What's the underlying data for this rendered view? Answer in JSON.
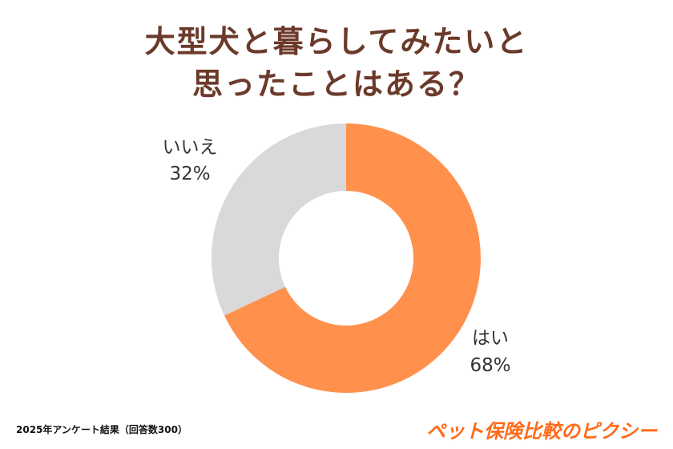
{
  "chart_data": {
    "type": "pie",
    "donut": true,
    "title_lines": [
      "大型犬と暮らしてみたいと",
      "思ったことはある？"
    ],
    "categories": [
      "はい",
      "いいえ"
    ],
    "values": [
      68,
      32
    ],
    "value_labels": [
      "68%",
      "32%"
    ],
    "colors": [
      "#FF914D",
      "#D9D9D9"
    ],
    "start_angle": "top",
    "direction": "clockwise",
    "legend": "none"
  },
  "footer": {
    "note": "2025年アンケート結果（回答数300）",
    "brand": "ペット保険比較のピクシー"
  }
}
